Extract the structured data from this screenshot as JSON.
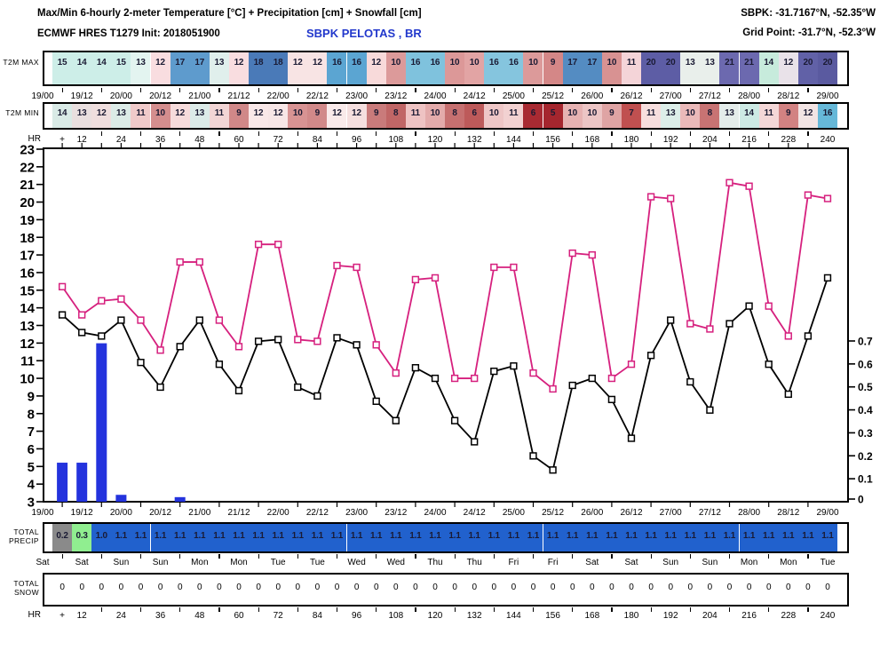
{
  "header": {
    "title": "Max/Min 6-hourly 2-meter Temperature [°C] + Precipitation [cm] + Snowfall [cm]",
    "station_coords": "SBPK: -31.7167°N, -52.35°W",
    "model_init": "ECMWF HRES T1279 Init: 2018051900",
    "station_name": "SBPK PELOTAS , BR",
    "grid_point": "Grid Point: -31.7°N, -52.3°W"
  },
  "labels": {
    "t2m_max": "T2M MAX",
    "t2m_min": "T2M MIN",
    "total_precip": "TOTAL\nPRECIP",
    "total_snow": "TOTAL\nSNOW",
    "hr": "HR",
    "hr_plus": "+"
  },
  "time_axis": {
    "date_labels": [
      "19/00",
      "19/12",
      "20/00",
      "20/12",
      "21/00",
      "21/12",
      "22/00",
      "22/12",
      "23/00",
      "23/12",
      "24/00",
      "24/12",
      "25/00",
      "25/12",
      "26/00",
      "26/12",
      "27/00",
      "27/12",
      "28/00",
      "28/12",
      "29/00"
    ],
    "day_labels": [
      "Sat",
      "Sat",
      "Sun",
      "Sun",
      "Mon",
      "Mon",
      "Tue",
      "Tue",
      "Wed",
      "Wed",
      "Thu",
      "Thu",
      "Fri",
      "Fri",
      "Sat",
      "Sat",
      "Sun",
      "Sun",
      "Mon",
      "Mon",
      "Tue"
    ],
    "hr_labels": [
      "12",
      "24",
      "36",
      "48",
      "60",
      "72",
      "84",
      "96",
      "108",
      "120",
      "132",
      "144",
      "156",
      "168",
      "180",
      "192",
      "204",
      "216",
      "228",
      "240"
    ]
  },
  "t2m_max_row": {
    "values": [
      15,
      14,
      14,
      15,
      13,
      12,
      17,
      17,
      13,
      12,
      18,
      18,
      12,
      12,
      16,
      16,
      12,
      10,
      16,
      16,
      10,
      10,
      16,
      16,
      10,
      9,
      17,
      17,
      10,
      11,
      20,
      20,
      13,
      13,
      21,
      21,
      14,
      12,
      20,
      20
    ],
    "colors": [
      "#cdeee8",
      "#cdeee8",
      "#cdeee8",
      "#cdeee8",
      "#e3f4f0",
      "#f9dde0",
      "#5e9bcd",
      "#5e9bcd",
      "#e0efec",
      "#f9dde0",
      "#4a7ab8",
      "#4a7ab8",
      "#f8e4e4",
      "#f8e4e4",
      "#5ba5d2",
      "#5ba5d2",
      "#f8dada",
      "#dc9a9a",
      "#7fc2dd",
      "#7fc2dd",
      "#dc9898",
      "#e2a4a4",
      "#85c5de",
      "#85c5de",
      "#dc9a9a",
      "#d48787",
      "#548cc2",
      "#548cc2",
      "#d89292",
      "#f4d4d8",
      "#5d5da5",
      "#5d5da5",
      "#e9efeb",
      "#e9efeb",
      "#6c69af",
      "#6c69af",
      "#c7ebdc",
      "#e9e2e9",
      "#6161a7",
      "#5a5aa0"
    ]
  },
  "t2m_min_row": {
    "values": [
      14,
      13,
      12,
      13,
      11,
      10,
      12,
      13,
      11,
      9,
      12,
      12,
      10,
      9,
      12,
      12,
      9,
      8,
      11,
      10,
      8,
      6,
      10,
      11,
      6,
      5,
      10,
      10,
      9,
      7,
      11,
      13,
      10,
      8,
      13,
      14,
      11,
      9,
      12,
      16
    ],
    "colors": [
      "#d9eae6",
      "#e9dfdf",
      "#efdede",
      "#dcebe7",
      "#f0caca",
      "#d48e8e",
      "#f6dbdb",
      "#dcebe8",
      "#f2d5d5",
      "#d08888",
      "#f9e8e8",
      "#f7e6e6",
      "#d89393",
      "#d18989",
      "#f9eaea",
      "#f5dfdf",
      "#c97b7b",
      "#c06666",
      "#eec3c3",
      "#e3abab",
      "#c67070",
      "#bd5a5a",
      "#eec6c6",
      "#f2d1d1",
      "#a82a32",
      "#a5262e",
      "#e6b2b2",
      "#ecc5c5",
      "#dfa4a4",
      "#c05050",
      "#f7dede",
      "#ddeee9",
      "#eab9b9",
      "#c87373",
      "#e4ecea",
      "#cdeae4",
      "#f4d7d7",
      "#d28282",
      "#f2e4e4",
      "#66b8d8"
    ]
  },
  "total_precip_row": {
    "values": [
      "0.2",
      "0.3",
      "1.0",
      "1.1",
      "1.1",
      "1.1",
      "1.1",
      "1.1",
      "1.1",
      "1.1",
      "1.1",
      "1.1",
      "1.1",
      "1.1",
      "1.1",
      "1.1",
      "1.1",
      "1.1",
      "1.1",
      "1.1",
      "1.1",
      "1.1",
      "1.1",
      "1.1",
      "1.1",
      "1.1",
      "1.1",
      "1.1",
      "1.1",
      "1.1",
      "1.1",
      "1.1",
      "1.1",
      "1.1",
      "1.1",
      "1.1",
      "1.1",
      "1.1",
      "1.1",
      "1.1"
    ],
    "colors": [
      "#8a8a8a",
      "#90ee90",
      "#2161cd",
      "#2161cd",
      "#2161cd",
      "#2161cd",
      "#2161cd",
      "#2161cd",
      "#2161cd",
      "#2161cd",
      "#2161cd",
      "#2161cd",
      "#2161cd",
      "#2161cd",
      "#2161cd",
      "#2161cd",
      "#2161cd",
      "#2161cd",
      "#2161cd",
      "#2161cd",
      "#2161cd",
      "#2161cd",
      "#2161cd",
      "#2161cd",
      "#2161cd",
      "#2161cd",
      "#2161cd",
      "#2161cd",
      "#2161cd",
      "#2161cd",
      "#2161cd",
      "#2161cd",
      "#2161cd",
      "#2161cd",
      "#2161cd",
      "#2161cd",
      "#2161cd",
      "#2161cd",
      "#2161cd",
      "#2161cd"
    ]
  },
  "total_snow_row": {
    "values": [
      "0",
      "0",
      "0",
      "0",
      "0",
      "0",
      "0",
      "0",
      "0",
      "0",
      "0",
      "0",
      "0",
      "0",
      "0",
      "0",
      "0",
      "0",
      "0",
      "0",
      "0",
      "0",
      "0",
      "0",
      "0",
      "0",
      "0",
      "0",
      "0",
      "0",
      "0",
      "0",
      "0",
      "0",
      "0",
      "0",
      "0",
      "0",
      "0",
      "0"
    ]
  },
  "chart_data": {
    "type": "line",
    "subtype": "meteogram temperature lines + precipitation bars",
    "x_hours": [
      6,
      12,
      18,
      24,
      30,
      36,
      42,
      48,
      54,
      60,
      66,
      72,
      78,
      84,
      90,
      96,
      102,
      108,
      114,
      120,
      126,
      132,
      138,
      144,
      150,
      156,
      162,
      168,
      174,
      180,
      186,
      192,
      198,
      204,
      210,
      216,
      222,
      228,
      234,
      240
    ],
    "x_date_labels": [
      "19/00",
      "19/12",
      "20/00",
      "20/12",
      "21/00",
      "21/12",
      "22/00",
      "22/12",
      "23/00",
      "23/12",
      "24/00",
      "24/12",
      "25/00",
      "25/12",
      "26/00",
      "26/12",
      "27/00",
      "27/12",
      "28/00",
      "28/12",
      "29/00"
    ],
    "temp_axis": {
      "min": 3,
      "max": 23,
      "tick_step": 1
    },
    "precip_axis": {
      "ticks": [
        0,
        0.1,
        0.2,
        0.3,
        0.4,
        0.5,
        0.6,
        0.7
      ],
      "unit": "cm"
    },
    "series": [
      {
        "name": "T2M MAX",
        "color": "#d6207e",
        "marker": "open-square",
        "values": [
          15.2,
          13.6,
          14.4,
          14.5,
          13.3,
          11.6,
          16.6,
          16.6,
          13.3,
          11.8,
          17.6,
          17.6,
          12.2,
          12.1,
          16.4,
          16.3,
          11.9,
          10.3,
          15.6,
          15.7,
          10.0,
          10.0,
          16.3,
          16.3,
          10.3,
          9.4,
          17.1,
          17.0,
          10.0,
          10.8,
          20.3,
          20.2,
          13.1,
          12.8,
          21.1,
          20.9,
          14.1,
          12.4,
          20.4,
          20.2
        ]
      },
      {
        "name": "T2M MIN",
        "color": "#000000",
        "marker": "open-square",
        "values": [
          13.6,
          12.6,
          12.4,
          13.3,
          10.9,
          9.5,
          11.8,
          13.3,
          10.8,
          9.3,
          12.1,
          12.2,
          9.5,
          9.0,
          12.3,
          11.9,
          8.7,
          7.6,
          10.6,
          10.0,
          7.6,
          6.4,
          10.4,
          10.7,
          5.6,
          4.8,
          9.6,
          10.0,
          8.8,
          6.6,
          11.3,
          13.3,
          9.8,
          8.2,
          13.1,
          14.1,
          10.8,
          9.1,
          12.4,
          15.7
        ]
      }
    ],
    "precip_bars": {
      "name": "6-hourly precipitation",
      "color": "#2433dd",
      "points": [
        {
          "hour": 6,
          "cm": 0.17
        },
        {
          "hour": 12,
          "cm": 0.17
        },
        {
          "hour": 18,
          "cm": 0.69
        },
        {
          "hour": 24,
          "cm": 0.03
        },
        {
          "hour": 42,
          "cm": 0.02
        }
      ]
    }
  }
}
